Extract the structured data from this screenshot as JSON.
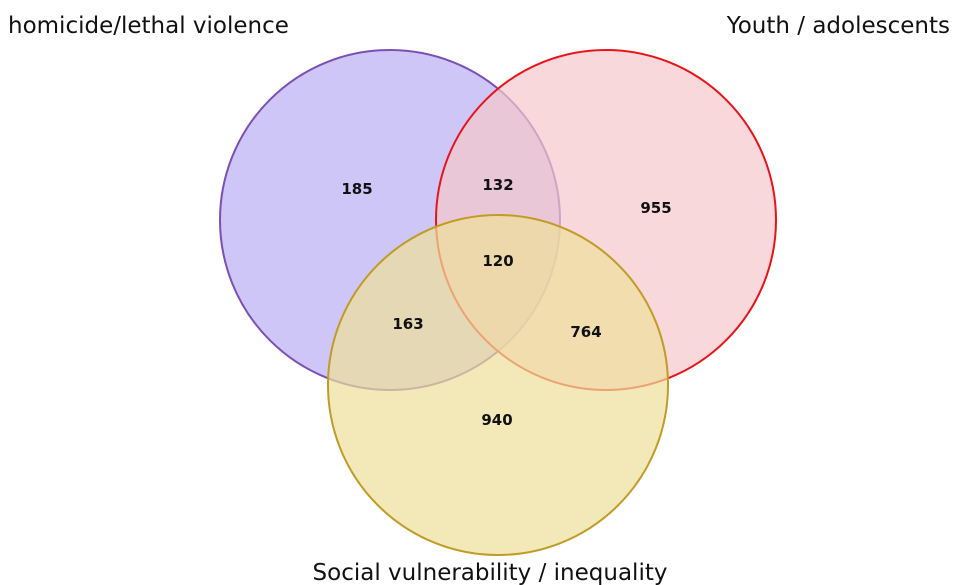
{
  "chart_data": {
    "type": "venn",
    "sets": [
      {
        "name": "homicide/lethal violence",
        "fill": "#b8aef2",
        "stroke": "#7a50b5"
      },
      {
        "name": "Youth / adolescents",
        "fill": "#f5c8cb",
        "stroke": "#e8141a"
      },
      {
        "name": "Social vulnerability / inequality",
        "fill": "#eedf9a",
        "stroke": "#c09b25"
      }
    ],
    "regions": {
      "homicide_only": 185,
      "youth_only": 955,
      "social_only": 940,
      "homicide_youth": 132,
      "homicide_social": 163,
      "youth_social": 764,
      "all_three": 120
    }
  }
}
